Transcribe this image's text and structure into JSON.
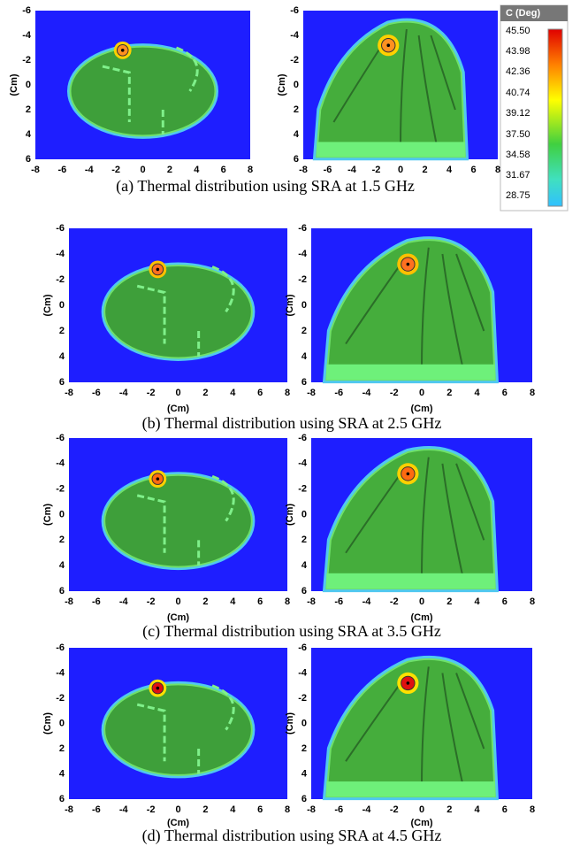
{
  "axes": {
    "y_label": "(Cm)",
    "xticks": [
      -8,
      -6,
      -4,
      -2,
      0,
      2,
      4,
      6,
      8
    ],
    "yticks": [
      -6,
      -4,
      -2,
      0,
      2,
      4,
      6
    ]
  },
  "panels": [
    {
      "caption": "(a) Thermal distribution using SRA at 1.5 GHz"
    },
    {
      "caption": "(b) Thermal distribution using SRA at 2.5 GHz",
      "x_label": "(Cm)"
    },
    {
      "caption": "(c) Thermal distribution using SRA at 3.5 GHz",
      "x_label": "(Cm)"
    },
    {
      "caption": "(d) Thermal distribution using SRA at 4.5 GHz",
      "x_label": "(Cm)"
    }
  ],
  "colorbar": {
    "title": "C (Deg)",
    "labels": [
      "45.50",
      "43.98",
      "42.36",
      "40.74",
      "39.12",
      "37.50",
      "34.58",
      "31.67",
      "28.75"
    ]
  }
}
